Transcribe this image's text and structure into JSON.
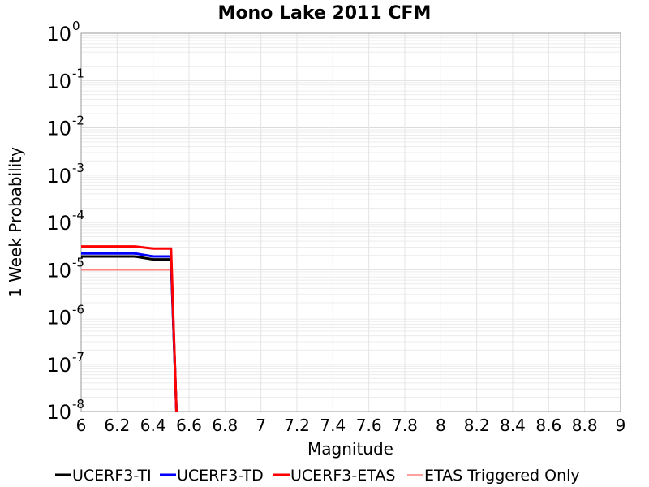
{
  "chart_data": {
    "type": "line",
    "title": "Mono Lake 2011 CFM",
    "xlabel": "Magnitude",
    "ylabel": "1 Week Probability",
    "xlim": [
      6,
      9
    ],
    "ylim": [
      1e-08,
      1
    ],
    "yscale": "log",
    "grid": true,
    "legend_position": "bottom",
    "x_ticks": [
      "6",
      "6.2",
      "6.4",
      "6.6",
      "6.8",
      "7",
      "7.2",
      "7.4",
      "7.6",
      "7.8",
      "8",
      "8.2",
      "8.4",
      "8.6",
      "8.8",
      "9"
    ],
    "y_ticks": [
      {
        "base": "10",
        "exp": "0"
      },
      {
        "base": "10",
        "exp": "-1"
      },
      {
        "base": "10",
        "exp": "-2"
      },
      {
        "base": "10",
        "exp": "-3"
      },
      {
        "base": "10",
        "exp": "-4"
      },
      {
        "base": "10",
        "exp": "-5"
      },
      {
        "base": "10",
        "exp": "-6"
      },
      {
        "base": "10",
        "exp": "-7"
      },
      {
        "base": "10",
        "exp": "-8"
      }
    ],
    "series": [
      {
        "name": "UCERF3-TI",
        "color": "#000000",
        "x": [
          6.0,
          6.3,
          6.4,
          6.5,
          6.53
        ],
        "y": [
          1.9e-05,
          1.9e-05,
          1.65e-05,
          1.65e-05,
          1e-08
        ]
      },
      {
        "name": "UCERF3-TD",
        "color": "#0000ff",
        "x": [
          6.0,
          6.3,
          6.4,
          6.5,
          6.53
        ],
        "y": [
          2.2e-05,
          2.2e-05,
          1.9e-05,
          1.9e-05,
          1e-08
        ]
      },
      {
        "name": "UCERF3-ETAS",
        "color": "#ff0000",
        "x": [
          6.0,
          6.3,
          6.4,
          6.5,
          6.53
        ],
        "y": [
          3.1e-05,
          3.1e-05,
          2.8e-05,
          2.8e-05,
          1e-08
        ]
      },
      {
        "name": "ETAS Triggered Only",
        "color": "#ff8080",
        "x": [
          6.0,
          6.3,
          6.4,
          6.5
        ],
        "y": [
          9.8e-06,
          9.8e-06,
          9.8e-06,
          9.8e-06
        ]
      }
    ]
  }
}
